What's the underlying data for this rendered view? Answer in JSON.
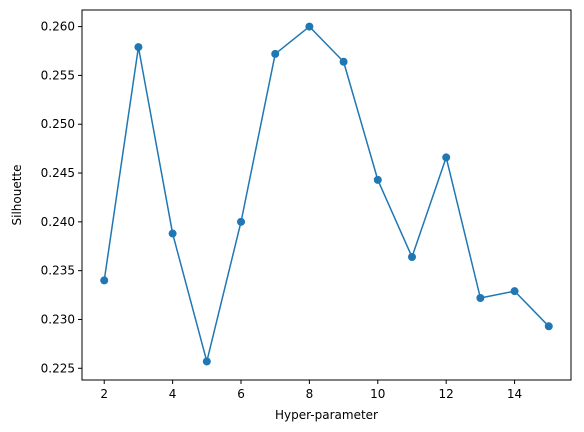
{
  "chart_data": {
    "type": "line",
    "title": "",
    "xlabel": "Hyper-parameter",
    "ylabel": "Silhouette",
    "xlim": [
      1.35,
      15.65
    ],
    "ylim": [
      0.2238,
      0.2617
    ],
    "x_ticks": [
      2,
      4,
      6,
      8,
      10,
      12,
      14
    ],
    "x_tick_labels": [
      "2",
      "4",
      "6",
      "8",
      "10",
      "12",
      "14"
    ],
    "y_ticks": [
      0.225,
      0.23,
      0.235,
      0.24,
      0.245,
      0.25,
      0.255,
      0.26
    ],
    "y_tick_labels": [
      "0.225",
      "0.230",
      "0.235",
      "0.240",
      "0.245",
      "0.250",
      "0.255",
      "0.260"
    ],
    "grid": false,
    "legend": "none",
    "series": [
      {
        "color": "#1f77b4",
        "marker": "circle",
        "x": [
          2,
          3,
          4,
          5,
          6,
          7,
          8,
          9,
          10,
          11,
          12,
          13,
          14,
          15
        ],
        "y": [
          0.234,
          0.2579,
          0.2388,
          0.2257,
          0.24,
          0.2572,
          0.26,
          0.2564,
          0.2443,
          0.2364,
          0.2466,
          0.2322,
          0.2329,
          0.2293
        ]
      }
    ]
  }
}
